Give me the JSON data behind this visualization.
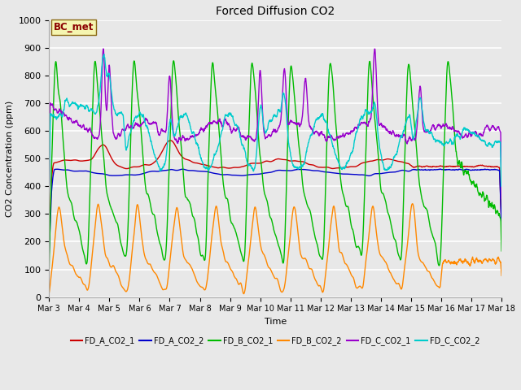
{
  "title": "Forced Diffusion CO2",
  "xlabel": "Time",
  "ylabel": "CO2 Concentration (ppm)",
  "ylim": [
    0,
    1000
  ],
  "plot_bg_color": "#e8e8e8",
  "grid_color": "white",
  "annotation_text": "BC_met",
  "annotation_color": "#8b0000",
  "annotation_bg": "#f5f5b0",
  "annotation_border": "#8b6914",
  "series": {
    "FD_A_CO2_1": {
      "color": "#cc0000",
      "lw": 1.0
    },
    "FD_A_CO2_2": {
      "color": "#0000cc",
      "lw": 1.0
    },
    "FD_B_CO2_1": {
      "color": "#00bb00",
      "lw": 1.0
    },
    "FD_B_CO2_2": {
      "color": "#ff8800",
      "lw": 1.0
    },
    "FD_C_CO2_1": {
      "color": "#9900cc",
      "lw": 1.0
    },
    "FD_C_CO2_2": {
      "color": "#00cccc",
      "lw": 1.0
    }
  },
  "xtick_labels": [
    "Mar 3",
    "Mar 4",
    "Mar 5",
    "Mar 6",
    "Mar 7",
    "Mar 8",
    "Mar 9",
    "Mar 10",
    "Mar 11",
    "Mar 12",
    "Mar 13",
    "Mar 14",
    "Mar 15",
    "Mar 16",
    "Mar 17",
    "Mar 18"
  ],
  "ytick_labels": [
    0,
    100,
    200,
    300,
    400,
    500,
    600,
    700,
    800,
    900,
    1000
  ],
  "n_points": 2000,
  "seed": 42
}
